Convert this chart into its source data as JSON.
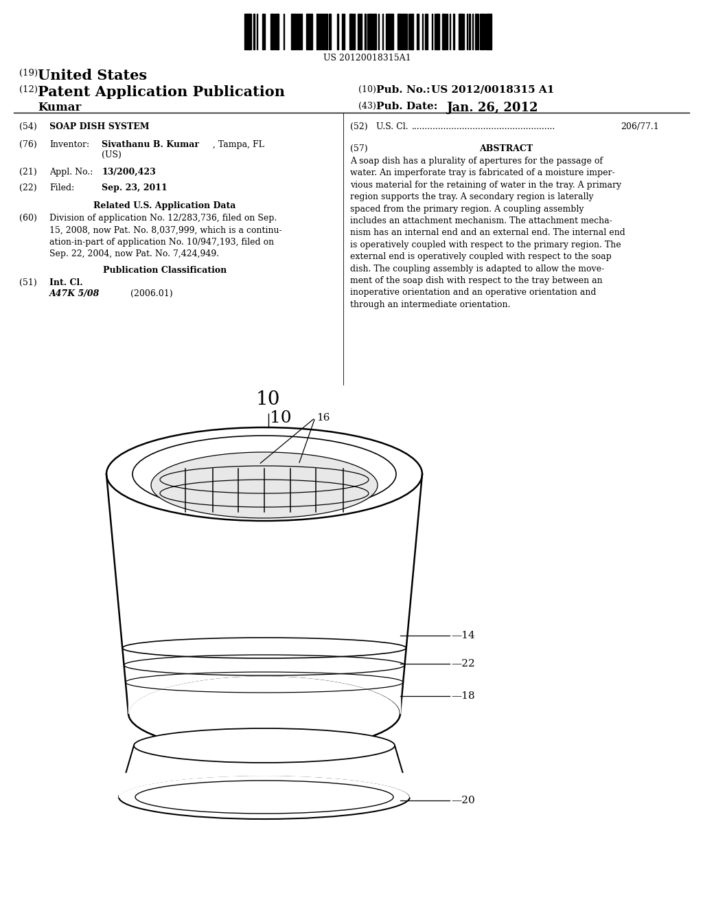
{
  "bg_color": "#ffffff",
  "text_color": "#000000",
  "title_number": "US 20120018315A1",
  "header": {
    "line1_num": "(19)",
    "line1_text": "United States",
    "line2_num": "(12)",
    "line2_text": "Patent Application Publication",
    "line3_name": "Kumar",
    "right_col1_num": "(10)",
    "right_col1_label": "Pub. No.:",
    "right_col1_val": "US 2012/0018315 A1",
    "right_col2_num": "(43)",
    "right_col2_label": "Pub. Date:",
    "right_col2_val": "Jan. 26, 2012"
  },
  "us_cl_tag": "(52)",
  "us_cl_label": "U.S. Cl.",
  "us_cl_dots": "......................................................",
  "us_cl_val": "206/77.1",
  "abstract_tag": "(57)",
  "abstract_title": "ABSTRACT",
  "abstract_text": "A soap dish has a plurality of apertures for the passage of\nwater. An imperforate tray is fabricated of a moisture imper-\nvious material for the retaining of water in the tray. A primary\nregion supports the tray. A secondary region is laterally\nspaced from the primary region. A coupling assembly\nincludes an attachment mechanism. The attachment mecha-\nnism has an internal end and an external end. The internal end\nis operatively coupled with respect to the primary region. The\nexternal end is operatively coupled with respect to the soap\ndish. The coupling assembly is adapted to allow the move-\nment of the soap dish with respect to the tray between an\ninoperative orientation and an operative orientation and\nthrough an intermediate orientation.",
  "tag54": "(54)",
  "label54": "SOAP DISH SYSTEM",
  "tag76": "(76)",
  "label76a": "Inventor:",
  "label76b": "Sivathanu B. Kumar",
  "label76c": ", Tampa, FL",
  "label76d": "(US)",
  "tag21": "(21)",
  "label21a": "Appl. No.:",
  "label21b": "13/200,423",
  "tag22": "(22)",
  "label22a": "Filed:",
  "label22b": "Sep. 23, 2011",
  "related_heading": "Related U.S. Application Data",
  "tag60": "(60)",
  "label60": "Division of application No. 12/283,736, filed on Sep.\n15, 2008, now Pat. No. 8,037,999, which is a continu-\nation-in-part of application No. 10/947,193, filed on\nSep. 22, 2004, now Pat. No. 7,424,949.",
  "pub_class_heading": "Publication Classification",
  "tag51": "(51)",
  "label51a": "Int. Cl.",
  "label51b": "A47K 5/08",
  "label51c": "(2006.01)",
  "figure_num": "10",
  "ann16": "16",
  "ann14": "14",
  "ann22": "22",
  "ann18": "18",
  "ann20": "20"
}
